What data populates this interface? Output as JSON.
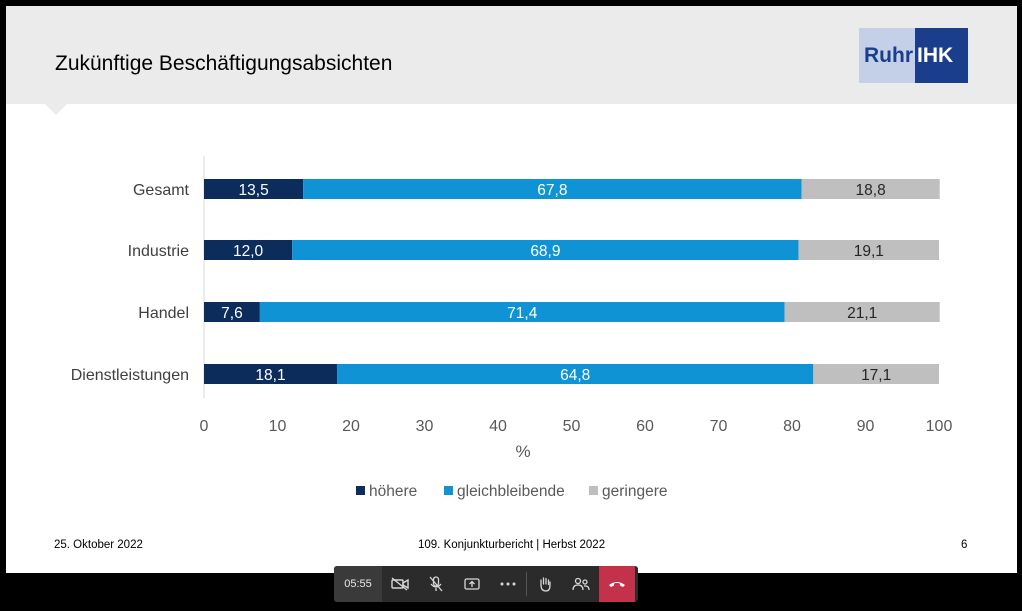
{
  "slide": {
    "title": "Zukünftige Beschäftigungsabsichten",
    "logo": {
      "left": "Ruhr",
      "right": "IHK"
    },
    "footer": {
      "date": "25. Oktober 2022",
      "center": "109. Konjunkturbericht | Herbst 2022",
      "page": "6"
    }
  },
  "chart_data": {
    "type": "bar",
    "orientation": "horizontal",
    "stacked": true,
    "categories": [
      "Gesamt",
      "Industrie",
      "Handel",
      "Dienstleistungen"
    ],
    "series": [
      {
        "name": "höhere",
        "color": "#0c2d5c",
        "values": [
          13.5,
          12.0,
          7.6,
          18.1
        ],
        "labels": [
          "13,5",
          "12,0",
          "7,6",
          "18,1"
        ]
      },
      {
        "name": "gleichbleibende",
        "color": "#0f93d5",
        "values": [
          67.8,
          68.9,
          71.4,
          64.8
        ],
        "labels": [
          "67,8",
          "68,9",
          "71,4",
          "64,8"
        ]
      },
      {
        "name": "geringere",
        "color": "#bfbfbf",
        "values": [
          18.8,
          19.1,
          21.1,
          17.1
        ],
        "labels": [
          "18,8",
          "19,1",
          "21,1",
          "17,1"
        ]
      }
    ],
    "xlim": [
      0,
      100
    ],
    "xticks": [
      "0",
      "10",
      "20",
      "30",
      "40",
      "50",
      "60",
      "70",
      "80",
      "90",
      "100"
    ],
    "xlabel": "%",
    "legend_position": "bottom",
    "grid": false
  },
  "callbar": {
    "time": "05:55",
    "icons": [
      "camera-off-icon",
      "mic-off-icon",
      "share-screen-icon",
      "more-icon",
      "raise-hand-icon",
      "participants-icon",
      "hang-up-icon"
    ]
  }
}
